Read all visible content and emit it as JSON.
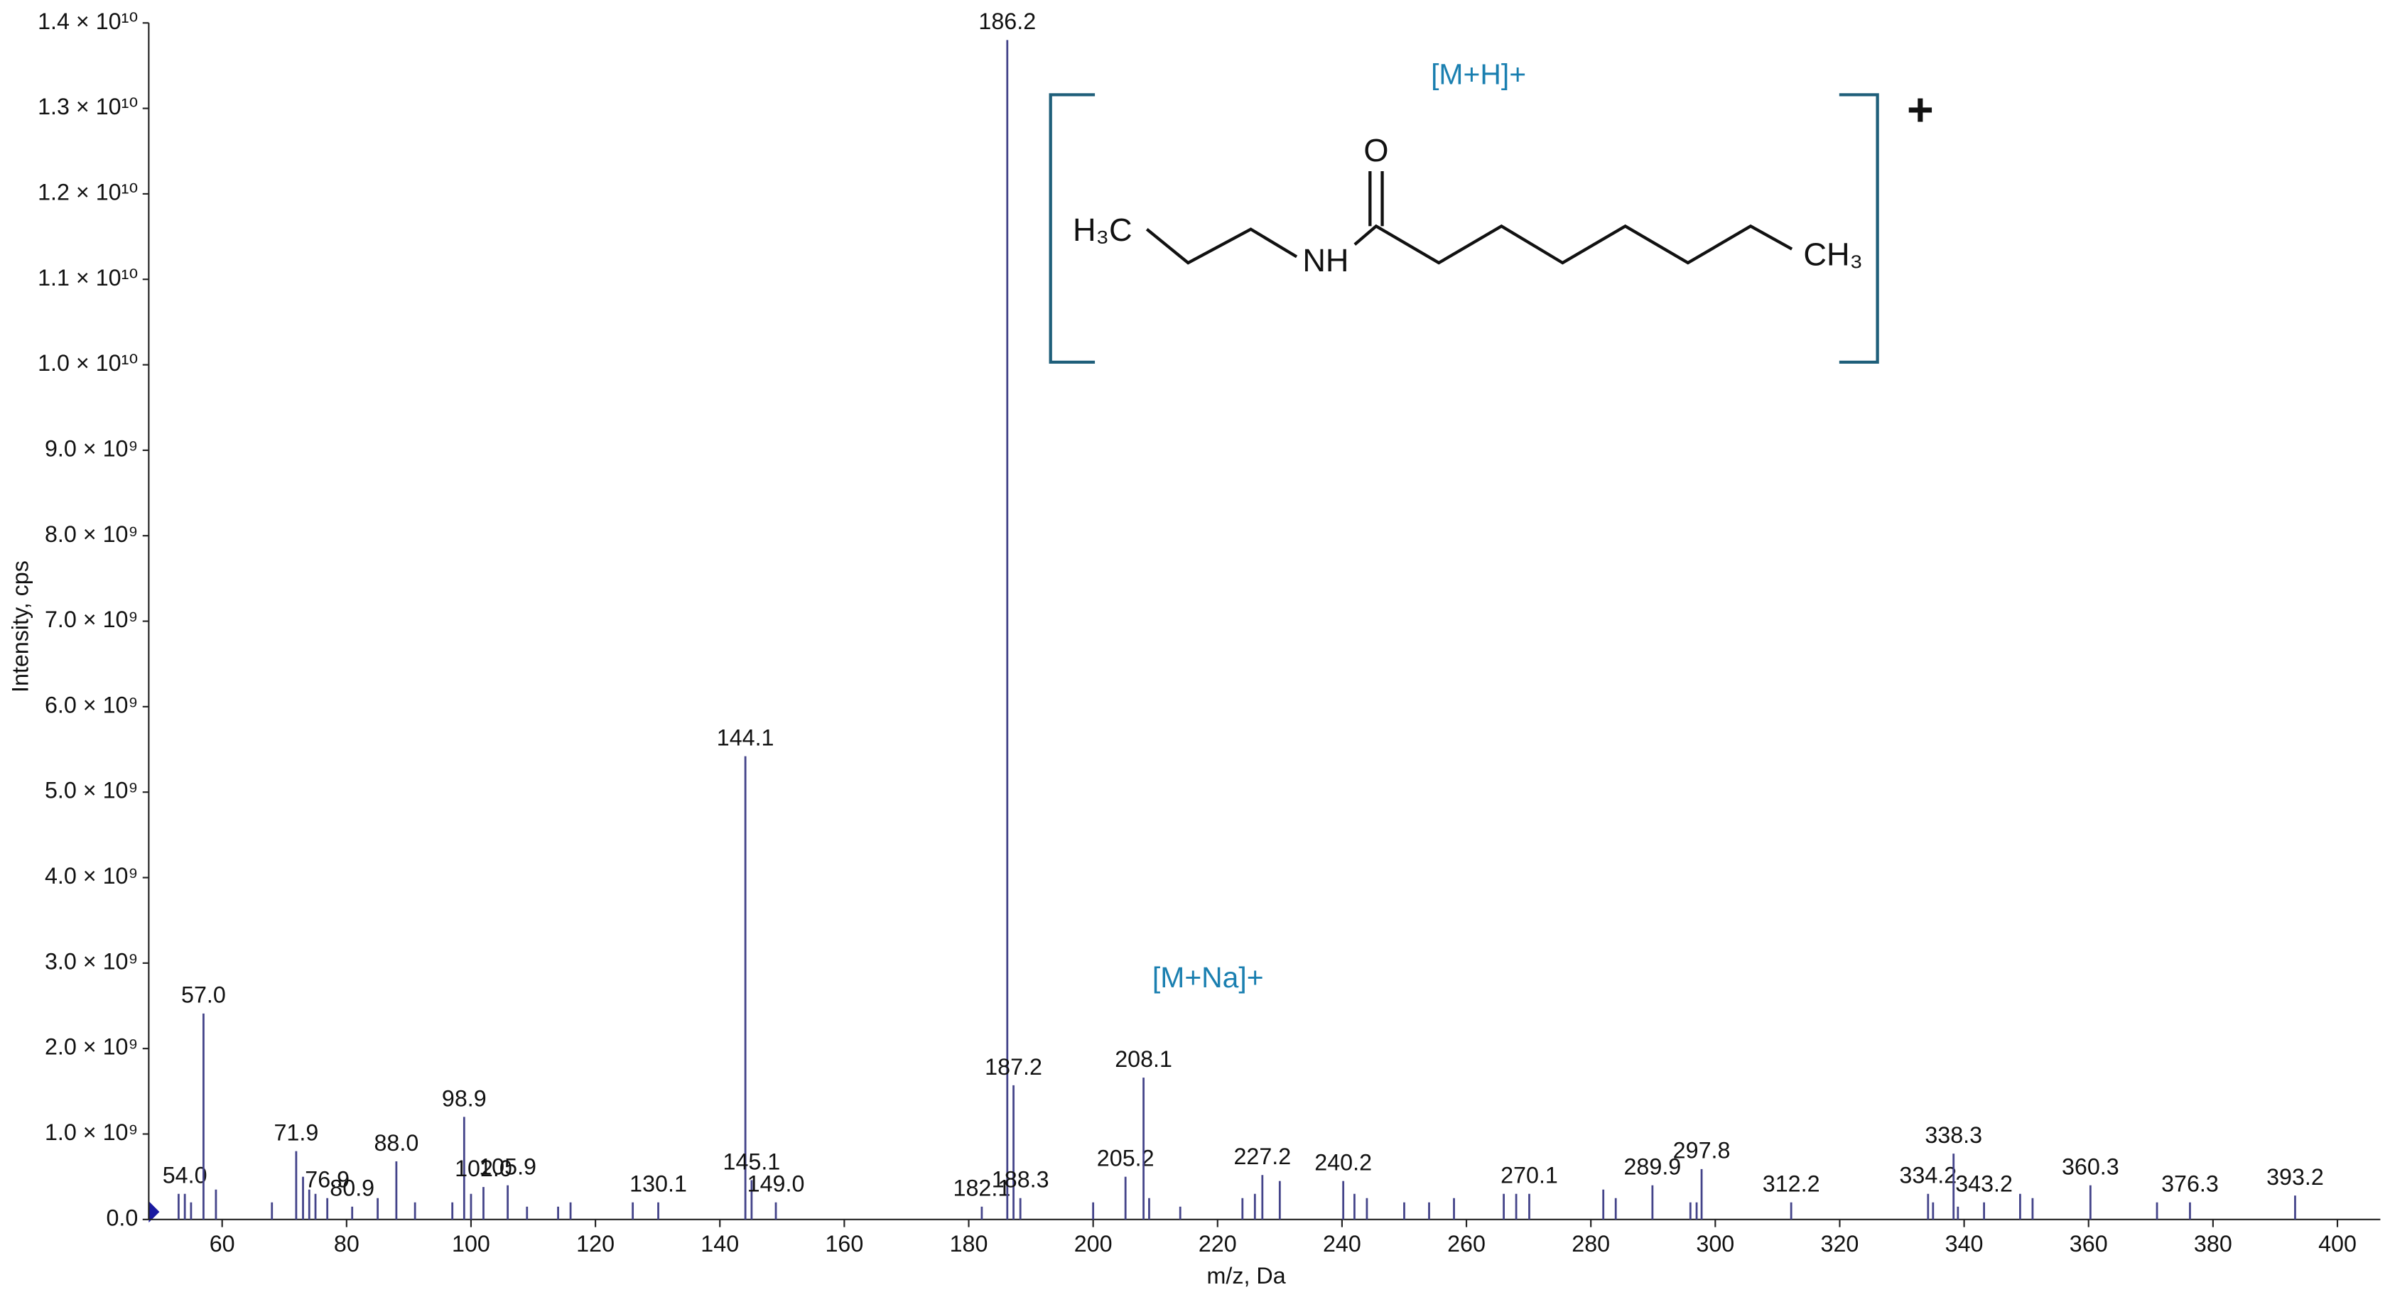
{
  "chart_data": {
    "type": "stem",
    "x_label": "m/z, Da",
    "y_label": "Intensity, cps",
    "annotations": [
      "[M+H]+",
      "[M+Na]+"
    ],
    "structure": {
      "methyl_left": "H₃C",
      "amine": "NH",
      "oxygen": "O",
      "methyl_right": "CH₃",
      "charge": "+"
    },
    "color": "#44448a",
    "xlim": [
      48.2,
      406.9
    ],
    "ylim": [
      0,
      14000000000
    ],
    "xticks": [
      60,
      80,
      100,
      120,
      140,
      160,
      180,
      200,
      220,
      240,
      260,
      280,
      300,
      320,
      340,
      360,
      380,
      400
    ],
    "yticks": [
      {
        "value": 0,
        "label": "0.0"
      },
      {
        "value": 1000000000,
        "label": "1.0 × 10⁹"
      },
      {
        "value": 2000000000,
        "label": "2.0 × 10⁹"
      },
      {
        "value": 3000000000,
        "label": "3.0 × 10⁹"
      },
      {
        "value": 4000000000,
        "label": "4.0 × 10⁹"
      },
      {
        "value": 5000000000,
        "label": "5.0 × 10⁹"
      },
      {
        "value": 6000000000,
        "label": "6.0 × 10⁹"
      },
      {
        "value": 7000000000,
        "label": "7.0 × 10⁹"
      },
      {
        "value": 8000000000,
        "label": "8.0 × 10⁹"
      },
      {
        "value": 9000000000,
        "label": "9.0 × 10⁹"
      },
      {
        "value": 10000000000,
        "label": "1.0 × 10¹⁰"
      },
      {
        "value": 11000000000,
        "label": "1.1 × 10¹⁰"
      },
      {
        "value": 12000000000,
        "label": "1.2 × 10¹⁰"
      },
      {
        "value": 13000000000,
        "label": "1.3 × 10¹⁰"
      },
      {
        "value": 14000000000,
        "label": "1.4 × 10¹⁰"
      }
    ],
    "peaks": {
      "x": [
        54.0,
        57.0,
        71.9,
        76.9,
        80.9,
        88.0,
        98.9,
        102.0,
        105.9,
        130.1,
        144.1,
        145.1,
        149.0,
        182.1,
        186.2,
        187.2,
        188.3,
        205.2,
        208.1,
        227.2,
        240.2,
        270.1,
        289.9,
        297.8,
        312.2,
        334.2,
        338.3,
        343.2,
        360.3,
        376.3,
        393.2
      ],
      "labels": [
        "54.0",
        "57.0",
        "71.9",
        "76.9",
        "80.9",
        "88.0",
        "98.9",
        "102.0",
        "105.9",
        "130.1",
        "144.1",
        "145.1",
        "149.0",
        "182.1",
        "186.2",
        "187.2",
        "188.3",
        "205.2",
        "208.1",
        "227.2",
        "240.2",
        "270.1",
        "289.9",
        "297.8",
        "312.2",
        "334.2",
        "338.3",
        "343.2",
        "360.3",
        "376.3",
        "393.2"
      ],
      "values": [
        300000000,
        2410000000,
        800000000,
        250000000,
        150000000,
        680000000,
        1200000000,
        380000000,
        400000000,
        200000000,
        5420000000,
        460000000,
        200000000,
        150000000,
        13800000000,
        1570000000,
        250000000,
        500000000,
        1660000000,
        520000000,
        450000000,
        300000000,
        400000000,
        590000000,
        200000000,
        300000000,
        770000000,
        200000000,
        400000000,
        200000000,
        280000000
      ]
    },
    "minor_peaks": {
      "x": [
        53,
        55,
        59,
        68,
        73,
        74,
        75,
        85,
        91,
        97,
        100,
        109,
        114,
        116,
        126,
        200,
        209,
        214,
        224,
        226,
        230,
        242,
        244,
        250,
        254,
        258,
        266,
        268,
        282,
        284,
        296,
        297,
        335,
        339,
        349,
        351,
        371
      ],
      "values": [
        300000000,
        200000000,
        350000000,
        200000000,
        500000000,
        350000000,
        300000000,
        250000000,
        200000000,
        200000000,
        300000000,
        150000000,
        150000000,
        200000000,
        200000000,
        200000000,
        250000000,
        150000000,
        250000000,
        300000000,
        450000000,
        300000000,
        250000000,
        200000000,
        200000000,
        250000000,
        300000000,
        300000000,
        350000000,
        250000000,
        200000000,
        200000000,
        200000000,
        150000000,
        300000000,
        250000000,
        200000000
      ]
    }
  }
}
